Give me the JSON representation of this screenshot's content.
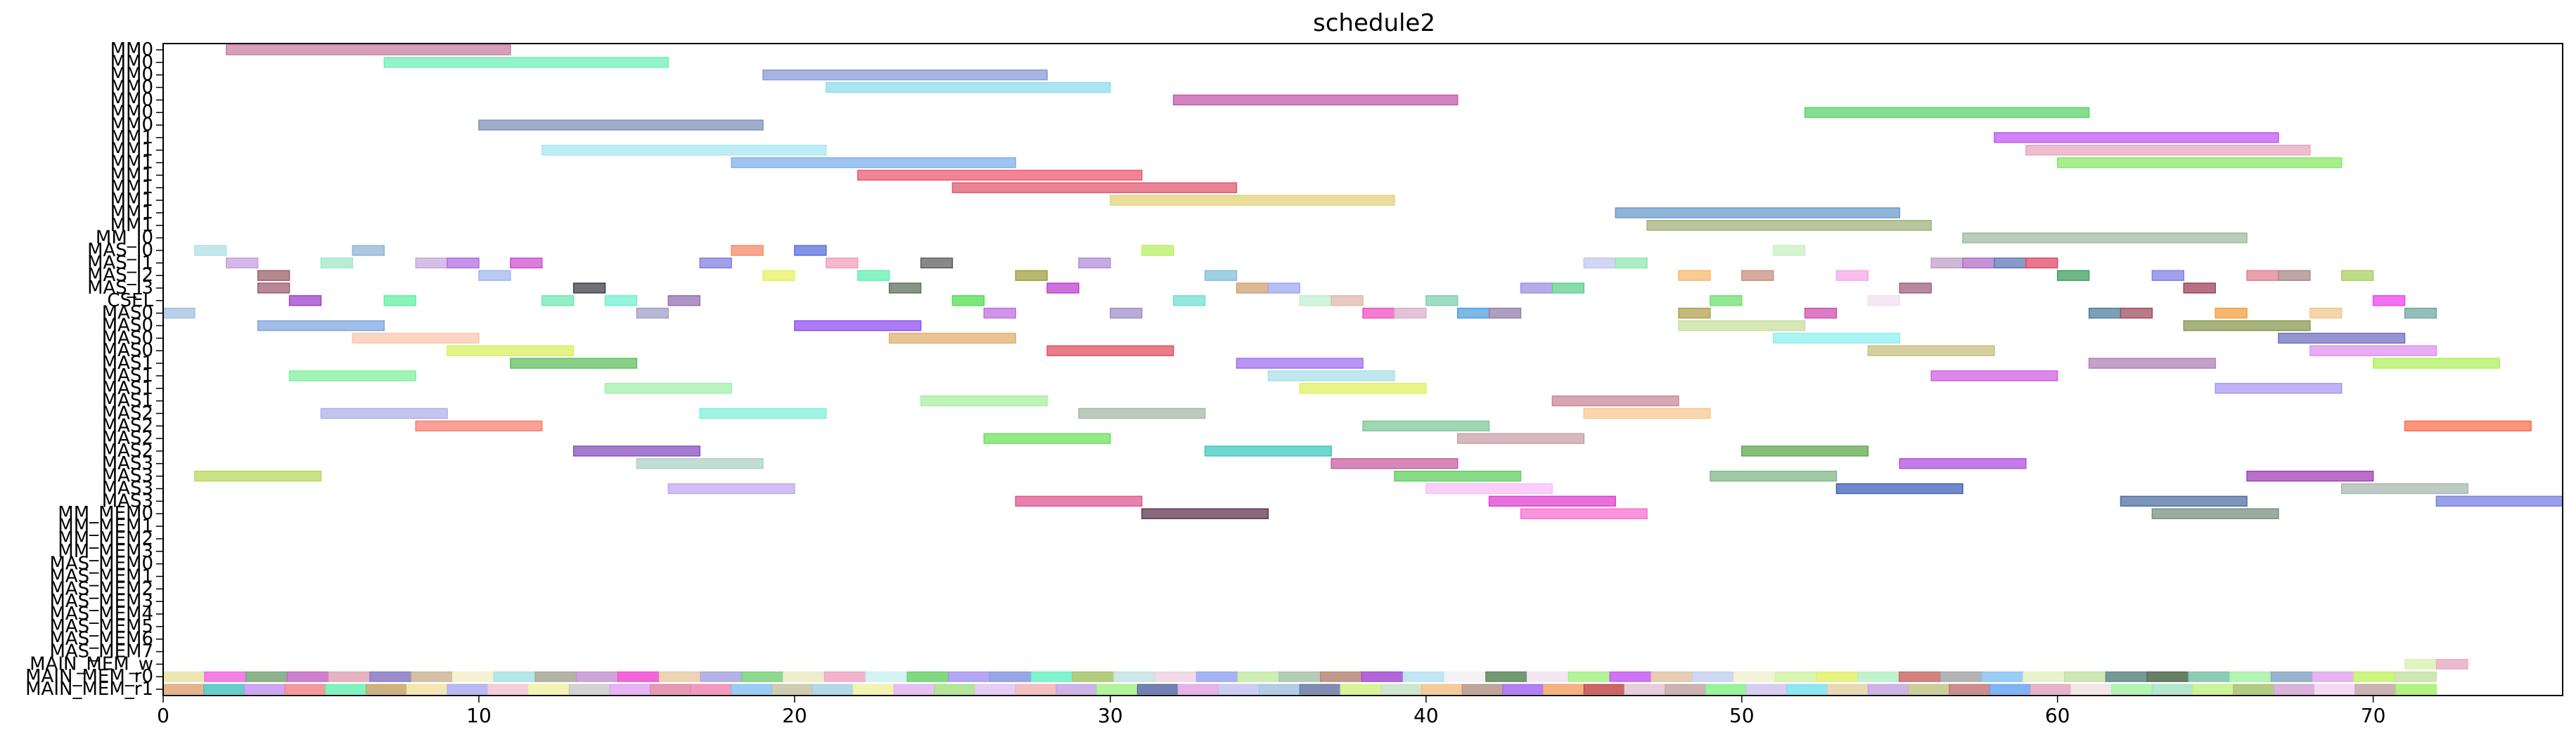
{
  "chart_data": {
    "type": "gantt",
    "title": "schedule2",
    "xlabel": "",
    "ylabel": "",
    "xlim": [
      0,
      76
    ],
    "xticks": [
      0,
      10,
      20,
      30,
      40,
      50,
      60,
      70
    ],
    "grid": false,
    "rows": [
      "MM0",
      "MM0",
      "MM0",
      "MM0",
      "MM0",
      "MM0",
      "MM0",
      "MM1",
      "MM1",
      "MM1",
      "MM1",
      "MM1",
      "MM1",
      "MM1",
      "MM1",
      "MM_I0",
      "MAS_I0",
      "MAS_I1",
      "MAS_I2",
      "MAS_I3",
      "CSEL",
      "MAS0",
      "MAS0",
      "MAS0",
      "MAS0",
      "MAS1",
      "MAS1",
      "MAS1",
      "MAS1",
      "MAS2",
      "MAS2",
      "MAS2",
      "MAS2",
      "MAS3",
      "MAS3",
      "MAS3",
      "MAS3",
      "MM_MEM0",
      "MM_MEM1",
      "MM_MEM2",
      "MM_MEM3",
      "MAS_MEM0",
      "MAS_MEM1",
      "MAS_MEM2",
      "MAS_MEM3",
      "MAS_MEM4",
      "MAS_MEM5",
      "MAS_MEM6",
      "MAS_MEM7",
      "MAIN_MEM_w",
      "MAIN_MEM_r0",
      "MAIN_MEM_r1"
    ],
    "tasks": [
      {
        "row": 0,
        "start": 2,
        "end": 11,
        "color": "#c97fa3"
      },
      {
        "row": 1,
        "start": 7,
        "end": 16,
        "color": "#6ff0b7"
      },
      {
        "row": 2,
        "start": 19,
        "end": 28,
        "color": "#8a9bd6"
      },
      {
        "row": 3,
        "start": 21,
        "end": 30,
        "color": "#8fdcec"
      },
      {
        "row": 4,
        "start": 32,
        "end": 41,
        "color": "#c45aad"
      },
      {
        "row": 5,
        "start": 52,
        "end": 61,
        "color": "#5bd46a"
      },
      {
        "row": 6,
        "start": 10,
        "end": 19,
        "color": "#7f90b8"
      },
      {
        "row": 7,
        "start": 58,
        "end": 67,
        "color": "#c05af0"
      },
      {
        "row": 8,
        "start": 12,
        "end": 21,
        "color": "#a8e8f2"
      },
      {
        "row": 8,
        "start": 59,
        "end": 68,
        "color": "#e8a7c0"
      },
      {
        "row": 9,
        "start": 18,
        "end": 27,
        "color": "#7fb0ee"
      },
      {
        "row": 9,
        "start": 60,
        "end": 69,
        "color": "#8ae86a"
      },
      {
        "row": 10,
        "start": 22,
        "end": 31,
        "color": "#ec5a72"
      },
      {
        "row": 11,
        "start": 25,
        "end": 34,
        "color": "#e05872"
      },
      {
        "row": 12,
        "start": 30,
        "end": 39,
        "color": "#e3d27b"
      },
      {
        "row": 13,
        "start": 46,
        "end": 55,
        "color": "#6a9bc9"
      },
      {
        "row": 14,
        "start": 47,
        "end": 56,
        "color": "#a2b27a"
      },
      {
        "row": 15,
        "start": 57,
        "end": 66,
        "color": "#9fbba2"
      },
      {
        "row": 16,
        "start": 1,
        "end": 2,
        "color": "#b0e0e6"
      },
      {
        "row": 16,
        "start": 6,
        "end": 7,
        "color": "#8fb5d6"
      },
      {
        "row": 16,
        "start": 18,
        "end": 19,
        "color": "#f58a6a"
      },
      {
        "row": 16,
        "start": 20,
        "end": 21,
        "color": "#5a6fe0"
      },
      {
        "row": 16,
        "start": 31,
        "end": 32,
        "color": "#b8f060"
      },
      {
        "row": 16,
        "start": 51,
        "end": 52,
        "color": "#c8f0c0"
      },
      {
        "row": 17,
        "start": 2,
        "end": 3,
        "color": "#c8a0e0"
      },
      {
        "row": 17,
        "start": 5,
        "end": 6,
        "color": "#a0e8c8"
      },
      {
        "row": 17,
        "start": 8,
        "end": 9,
        "color": "#c8a8e0"
      },
      {
        "row": 17,
        "start": 9,
        "end": 10,
        "color": "#b070e0"
      },
      {
        "row": 17,
        "start": 11,
        "end": 12,
        "color": "#d050d0"
      },
      {
        "row": 17,
        "start": 17,
        "end": 18,
        "color": "#8080e0"
      },
      {
        "row": 17,
        "start": 21,
        "end": 22,
        "color": "#f0a0b8"
      },
      {
        "row": 17,
        "start": 24,
        "end": 25,
        "color": "#606060"
      },
      {
        "row": 17,
        "start": 29,
        "end": 30,
        "color": "#b090d8"
      },
      {
        "row": 17,
        "start": 45,
        "end": 46,
        "color": "#c0c8f0"
      },
      {
        "row": 17,
        "start": 46,
        "end": 47,
        "color": "#90e8b0"
      },
      {
        "row": 17,
        "start": 56,
        "end": 57,
        "color": "#c0a0c8"
      },
      {
        "row": 17,
        "start": 57,
        "end": 58,
        "color": "#b070c8"
      },
      {
        "row": 17,
        "start": 58,
        "end": 59,
        "color": "#6078b8"
      },
      {
        "row": 17,
        "start": 59,
        "end": 60,
        "color": "#e04868"
      },
      {
        "row": 18,
        "start": 3,
        "end": 4,
        "color": "#9a6068"
      },
      {
        "row": 18,
        "start": 10,
        "end": 11,
        "color": "#a0b8f0"
      },
      {
        "row": 18,
        "start": 19,
        "end": 20,
        "color": "#e8f060"
      },
      {
        "row": 18,
        "start": 22,
        "end": 23,
        "color": "#60f0b0"
      },
      {
        "row": 18,
        "start": 27,
        "end": 28,
        "color": "#a0a040"
      },
      {
        "row": 18,
        "start": 33,
        "end": 34,
        "color": "#80c0d8"
      },
      {
        "row": 18,
        "start": 48,
        "end": 49,
        "color": "#f8b870"
      },
      {
        "row": 18,
        "start": 50,
        "end": 51,
        "color": "#c89080"
      },
      {
        "row": 18,
        "start": 53,
        "end": 54,
        "color": "#f8a8e8"
      },
      {
        "row": 18,
        "start": 60,
        "end": 61,
        "color": "#40a060"
      },
      {
        "row": 18,
        "start": 63,
        "end": 64,
        "color": "#8080e8"
      },
      {
        "row": 18,
        "start": 66,
        "end": 67,
        "color": "#e08090"
      },
      {
        "row": 18,
        "start": 67,
        "end": 68,
        "color": "#a88888"
      },
      {
        "row": 18,
        "start": 69,
        "end": 70,
        "color": "#a8d060"
      },
      {
        "row": 19,
        "start": 3,
        "end": 4,
        "color": "#a06070"
      },
      {
        "row": 19,
        "start": 13,
        "end": 14,
        "color": "#404048"
      },
      {
        "row": 19,
        "start": 23,
        "end": 24,
        "color": "#607060"
      },
      {
        "row": 19,
        "start": 28,
        "end": 29,
        "color": "#c040d0"
      },
      {
        "row": 19,
        "start": 34,
        "end": 35,
        "color": "#d0a070"
      },
      {
        "row": 19,
        "start": 35,
        "end": 36,
        "color": "#a0a8f0"
      },
      {
        "row": 19,
        "start": 43,
        "end": 44,
        "color": "#a090e0"
      },
      {
        "row": 19,
        "start": 44,
        "end": 45,
        "color": "#60d090"
      },
      {
        "row": 19,
        "start": 55,
        "end": 56,
        "color": "#a06080"
      },
      {
        "row": 19,
        "start": 64,
        "end": 65,
        "color": "#a04058"
      },
      {
        "row": 20,
        "start": 4,
        "end": 5,
        "color": "#a040d0"
      },
      {
        "row": 20,
        "start": 7,
        "end": 8,
        "color": "#60f0a0"
      },
      {
        "row": 20,
        "start": 12,
        "end": 13,
        "color": "#70e8b0"
      },
      {
        "row": 20,
        "start": 14,
        "end": 15,
        "color": "#70f0d0"
      },
      {
        "row": 20,
        "start": 16,
        "end": 17,
        "color": "#9070b0"
      },
      {
        "row": 20,
        "start": 25,
        "end": 26,
        "color": "#50e050"
      },
      {
        "row": 20,
        "start": 32,
        "end": 33,
        "color": "#70e0d0"
      },
      {
        "row": 20,
        "start": 36,
        "end": 37,
        "color": "#c0f0d0"
      },
      {
        "row": 20,
        "start": 37,
        "end": 38,
        "color": "#e0b8a8"
      },
      {
        "row": 20,
        "start": 40,
        "end": 41,
        "color": "#80d0b0"
      },
      {
        "row": 20,
        "start": 49,
        "end": 50,
        "color": "#70e070"
      },
      {
        "row": 20,
        "start": 54,
        "end": 55,
        "color": "#f0e0f0"
      },
      {
        "row": 20,
        "start": 70,
        "end": 71,
        "color": "#f040f0"
      },
      {
        "row": 21,
        "start": 0,
        "end": 1,
        "color": "#a0c0e0"
      },
      {
        "row": 21,
        "start": 15,
        "end": 16,
        "color": "#a0a0c8"
      },
      {
        "row": 21,
        "start": 26,
        "end": 27,
        "color": "#c070e0"
      },
      {
        "row": 21,
        "start": 30,
        "end": 31,
        "color": "#a090c8"
      },
      {
        "row": 21,
        "start": 38,
        "end": 39,
        "color": "#f050c0"
      },
      {
        "row": 21,
        "start": 39,
        "end": 40,
        "color": "#d8b0c8"
      },
      {
        "row": 21,
        "start": 41,
        "end": 42,
        "color": "#50a0e0"
      },
      {
        "row": 21,
        "start": 42,
        "end": 43,
        "color": "#9080a8"
      },
      {
        "row": 21,
        "start": 48,
        "end": 49,
        "color": "#b0a050"
      },
      {
        "row": 21,
        "start": 52,
        "end": 53,
        "color": "#d050b0"
      },
      {
        "row": 21,
        "start": 61,
        "end": 62,
        "color": "#5080a0"
      },
      {
        "row": 21,
        "start": 62,
        "end": 63,
        "color": "#a05060"
      },
      {
        "row": 21,
        "start": 65,
        "end": 66,
        "color": "#f0a040"
      },
      {
        "row": 21,
        "start": 68,
        "end": 69,
        "color": "#f0c890"
      },
      {
        "row": 21,
        "start": 71,
        "end": 72,
        "color": "#70a8a0"
      },
      {
        "row": 22,
        "start": 3,
        "end": 7,
        "color": "#80a8e0"
      },
      {
        "row": 22,
        "start": 20,
        "end": 24,
        "color": "#9050f0"
      },
      {
        "row": 22,
        "start": 48,
        "end": 52,
        "color": "#c8e0a0"
      },
      {
        "row": 22,
        "start": 64,
        "end": 68,
        "color": "#8a9a50"
      },
      {
        "row": 23,
        "start": 6,
        "end": 10,
        "color": "#f8c8b0"
      },
      {
        "row": 23,
        "start": 23,
        "end": 27,
        "color": "#e0b070"
      },
      {
        "row": 23,
        "start": 51,
        "end": 55,
        "color": "#90f0f0"
      },
      {
        "row": 23,
        "start": 67,
        "end": 71,
        "color": "#7070c0"
      },
      {
        "row": 24,
        "start": 9,
        "end": 13,
        "color": "#d8f060"
      },
      {
        "row": 24,
        "start": 28,
        "end": 32,
        "color": "#e05060"
      },
      {
        "row": 24,
        "start": 54,
        "end": 58,
        "color": "#c8c080"
      },
      {
        "row": 24,
        "start": 68,
        "end": 72,
        "color": "#e090f0"
      },
      {
        "row": 25,
        "start": 11,
        "end": 15,
        "color": "#60c060"
      },
      {
        "row": 25,
        "start": 34,
        "end": 38,
        "color": "#a070f0"
      },
      {
        "row": 25,
        "start": 61,
        "end": 65,
        "color": "#b080b8"
      },
      {
        "row": 25,
        "start": 70,
        "end": 74,
        "color": "#b0f060"
      },
      {
        "row": 26,
        "start": 4,
        "end": 8,
        "color": "#80f0a0"
      },
      {
        "row": 26,
        "start": 35,
        "end": 39,
        "color": "#a8e0e8"
      },
      {
        "row": 26,
        "start": 56,
        "end": 60,
        "color": "#d060e0"
      },
      {
        "row": 27,
        "start": 14,
        "end": 18,
        "color": "#a0f0a8"
      },
      {
        "row": 27,
        "start": 36,
        "end": 40,
        "color": "#e0f060"
      },
      {
        "row": 27,
        "start": 65,
        "end": 69,
        "color": "#a898f0"
      },
      {
        "row": 28,
        "start": 24,
        "end": 28,
        "color": "#a8f0a0"
      },
      {
        "row": 28,
        "start": 44,
        "end": 48,
        "color": "#c88898"
      },
      {
        "row": 29,
        "start": 5,
        "end": 9,
        "color": "#b0b0e8"
      },
      {
        "row": 29,
        "start": 17,
        "end": 21,
        "color": "#80f0d8"
      },
      {
        "row": 29,
        "start": 29,
        "end": 33,
        "color": "#a8b8a8"
      },
      {
        "row": 29,
        "start": 45,
        "end": 49,
        "color": "#f8c890"
      },
      {
        "row": 30,
        "start": 8,
        "end": 12,
        "color": "#f88070"
      },
      {
        "row": 30,
        "start": 38,
        "end": 42,
        "color": "#80c898"
      },
      {
        "row": 30,
        "start": 71,
        "end": 75,
        "color": "#f87050"
      },
      {
        "row": 31,
        "start": 26,
        "end": 30,
        "color": "#70e060"
      },
      {
        "row": 31,
        "start": 41,
        "end": 45,
        "color": "#c8a0a8"
      },
      {
        "row": 32,
        "start": 13,
        "end": 17,
        "color": "#8850c0"
      },
      {
        "row": 32,
        "start": 33,
        "end": 37,
        "color": "#40c8c0"
      },
      {
        "row": 32,
        "start": 50,
        "end": 54,
        "color": "#60a850"
      },
      {
        "row": 33,
        "start": 15,
        "end": 19,
        "color": "#b0d0c8"
      },
      {
        "row": 33,
        "start": 37,
        "end": 41,
        "color": "#c860a0"
      },
      {
        "row": 33,
        "start": 55,
        "end": 59,
        "color": "#b050e0"
      },
      {
        "row": 34,
        "start": 1,
        "end": 5,
        "color": "#b8d860"
      },
      {
        "row": 34,
        "start": 39,
        "end": 43,
        "color": "#60d060"
      },
      {
        "row": 34,
        "start": 49,
        "end": 53,
        "color": "#80b888"
      },
      {
        "row": 34,
        "start": 66,
        "end": 70,
        "color": "#a040b8"
      },
      {
        "row": 35,
        "start": 16,
        "end": 20,
        "color": "#c0a8f0"
      },
      {
        "row": 35,
        "start": 40,
        "end": 44,
        "color": "#f8c0f8"
      },
      {
        "row": 35,
        "start": 53,
        "end": 57,
        "color": "#4060b8"
      },
      {
        "row": 35,
        "start": 69,
        "end": 73,
        "color": "#a8b8b0"
      },
      {
        "row": 36,
        "start": 27,
        "end": 31,
        "color": "#e05890"
      },
      {
        "row": 36,
        "start": 42,
        "end": 46,
        "color": "#e040d0"
      },
      {
        "row": 36,
        "start": 62,
        "end": 66,
        "color": "#5070a0"
      },
      {
        "row": 36,
        "start": 72,
        "end": 76,
        "color": "#7880e0"
      },
      {
        "row": 37,
        "start": 31,
        "end": 35,
        "color": "#603850"
      },
      {
        "row": 37,
        "start": 43,
        "end": 47,
        "color": "#f870d0"
      },
      {
        "row": 37,
        "start": 63,
        "end": 67,
        "color": "#789080"
      }
    ],
    "mem_rows": {
      "MAIN_MEM_w": [
        "#d8f0b0",
        "#e8a8c0"
      ],
      "MAIN_MEM_r0": [
        "#e8e0a0",
        "#f060e0",
        "#70a070",
        "#c060c0",
        "#e0a0b0",
        "#8070c0",
        "#c8b090",
        "#f0f0c8",
        "#a0e0e0",
        "#a0a090",
        "#c090d0",
        "#f040d0",
        "#e8c8a0",
        "#a0a0e0",
        "#70d070",
        "#e8e8c0",
        "#f0a0c0",
        "#c8f0f0",
        "#60d060",
        "#a090f0",
        "#8090e0",
        "#60f0c0",
        "#a0c060",
        "#c0e0e0",
        "#f0d0e0",
        "#90a0f0",
        "#c0e8a0",
        "#a0c0a0",
        "#b08070",
        "#a040d0",
        "#b0e0f0",
        "#f0f0f0",
        "#508050",
        "#f0e0f0",
        "#a0f080",
        "#c050f0",
        "#e0c0a0",
        "#c0d0f0",
        "#f0f0d0",
        "#d0f0a0",
        "#e0f060",
        "#b0f0c0",
        "#c86060",
        "#a0a0a0",
        "#80c0f0",
        "#e0f0c0",
        "#c0e0a0",
        "#508080",
        "#406040",
        "#70c0a0",
        "#a0f0a0",
        "#80a0c0",
        "#e0a0f0",
        "#c0f060",
        "#c0e0a0"
      ],
      "MAIN_MEM_r1": [
        "#e0a070",
        "#40c0c0",
        "#c090f0",
        "#f08080",
        "#60f0b0",
        "#c0a060",
        "#f0e0a0",
        "#a8a8f0",
        "#f0c0d0",
        "#f0f0a0",
        "#c8c8c8",
        "#e0a0f0",
        "#e080a0",
        "#f080b0",
        "#80c0f0",
        "#c0c0a0",
        "#a0d0e0",
        "#f0f0a0",
        "#e0b0f0",
        "#a0e080",
        "#e0c0f0",
        "#f0b0b0",
        "#c0a0e0",
        "#a0f080",
        "#5060a0",
        "#e0a0e0",
        "#c0c0f0",
        "#a0c0e0",
        "#6070a0",
        "#d0f080",
        "#c0e0c0",
        "#f0c080",
        "#b09080",
        "#a060f0",
        "#f0a060",
        "#c04040",
        "#e0c0d0",
        "#c0a0a0",
        "#80f080",
        "#d0c0f0",
        "#70e0f0",
        "#e0d0a0",
        "#c0a0e0",
        "#c0c080",
        "#c07070",
        "#60a0f0",
        "#e0a0c0",
        "#f0e0e0",
        "#a0f0a0",
        "#a0e0c0",
        "#c0f080",
        "#a0c060",
        "#d0a0d0",
        "#f0d0f0",
        "#c0a0a0",
        "#a0f060"
      ]
    }
  }
}
